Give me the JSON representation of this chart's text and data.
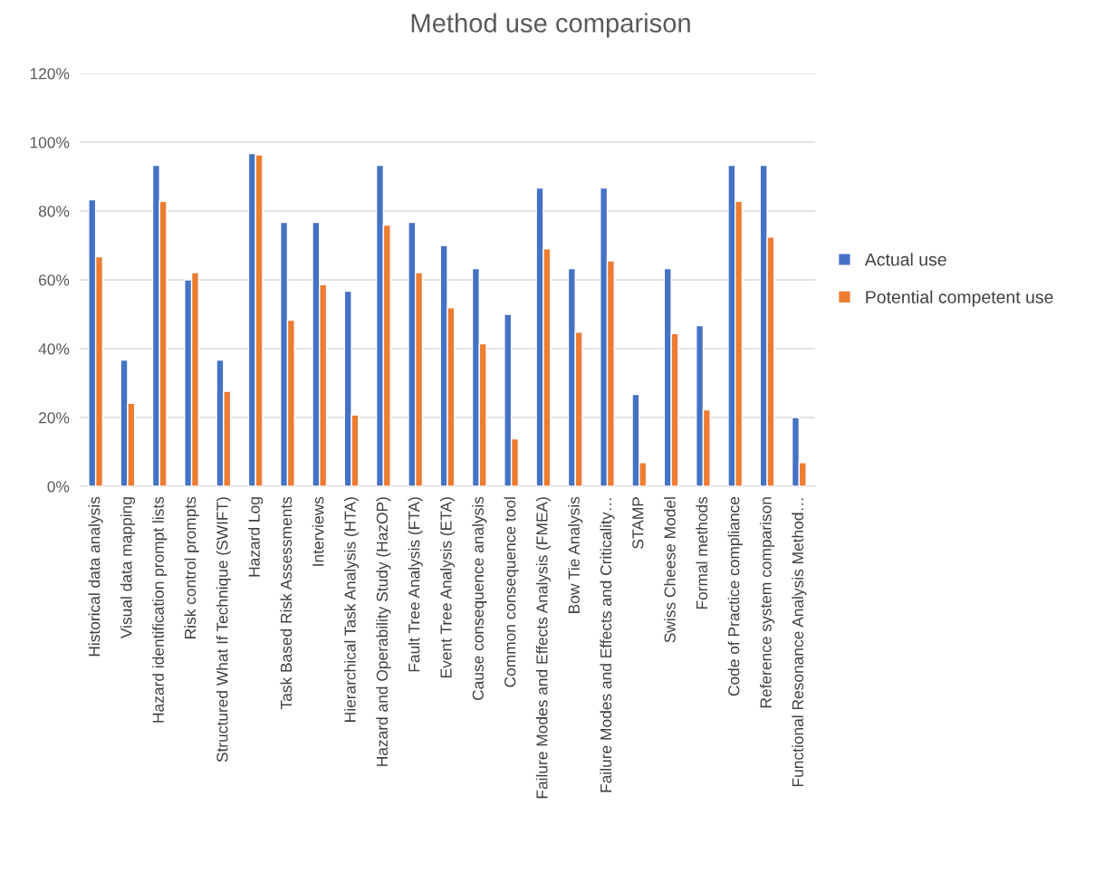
{
  "chart_data": {
    "type": "bar",
    "title": "Method use comparison",
    "categories": [
      "Historical data analysis",
      "Visual data mapping",
      "Hazard identification prompt lists",
      "Risk control prompts",
      "Structured What If Technique (SWIFT)",
      "Hazard Log",
      "Task Based Risk Assessments",
      "Interviews",
      "Hierarchical Task Analysis (HTA)",
      "Hazard and Operability Study (HazOP)",
      "Fault Tree Analysis (FTA)",
      "Event Tree Analysis (ETA)",
      "Cause consequence analysis",
      "Common consequence tool",
      "Failure Modes and Effects Analysis (FMEA)",
      "Bow Tie Analysis",
      "Failure Modes and Effects and Criticality…",
      "STAMP",
      "Swiss Cheese Model",
      "Formal methods",
      "Code of Practice compliance",
      "Reference system comparison",
      "Functional Resonance Analysis Method…"
    ],
    "series": [
      {
        "name": "Actual use",
        "color": "#4472c4",
        "values": [
          83.3,
          36.7,
          93.3,
          60.0,
          36.7,
          96.7,
          76.7,
          76.7,
          56.7,
          93.3,
          76.7,
          70.0,
          63.3,
          50.0,
          86.7,
          63.3,
          86.7,
          26.7,
          63.3,
          46.7,
          93.3,
          93.3,
          20.0
        ]
      },
      {
        "name": "Potential competent use",
        "color": "#ed7d31",
        "values": [
          66.7,
          24.1,
          82.8,
          62.1,
          27.6,
          96.3,
          48.3,
          58.6,
          20.7,
          75.9,
          62.1,
          51.9,
          41.4,
          13.8,
          69.0,
          44.8,
          65.5,
          6.9,
          44.4,
          22.2,
          82.8,
          72.4,
          6.9
        ]
      }
    ],
    "ylim": [
      0,
      120
    ],
    "yticks": [
      {
        "value": 0,
        "label": "0%"
      },
      {
        "value": 20,
        "label": "20%"
      },
      {
        "value": 40,
        "label": "40%"
      },
      {
        "value": 60,
        "label": "60%"
      },
      {
        "value": 80,
        "label": "80%"
      },
      {
        "value": 100,
        "label": "100%"
      },
      {
        "value": 120,
        "label": "120%"
      }
    ],
    "grid": "y",
    "legend": "right"
  }
}
